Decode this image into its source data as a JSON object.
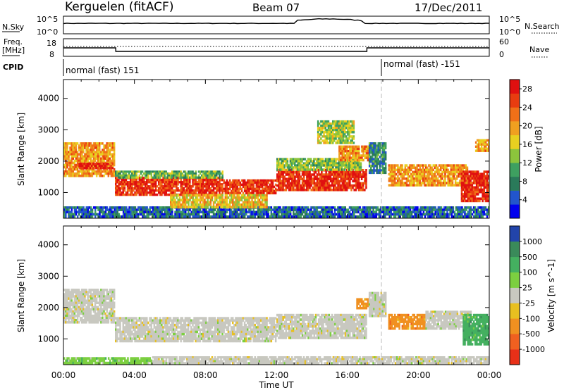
{
  "header": {
    "station": "Kerguelen (fitACF)",
    "beam": "Beam 07",
    "date": "17/Dec/2011"
  },
  "strip_nsky": {
    "left_label": "N.Sky",
    "left_ticks": [
      "10^5",
      "10^0"
    ],
    "right_label": "N.Search",
    "right_ticks": [
      "10^5",
      "10^0"
    ]
  },
  "strip_freq": {
    "left_label_1": "Freq.",
    "left_label_2": "[MHz]",
    "left_ticks": [
      "18",
      "8"
    ],
    "right_label": "Nave",
    "right_ticks": [
      "60",
      "0"
    ]
  },
  "strip_cpid": {
    "label": "CPID",
    "modes": [
      {
        "text": "normal (fast) 151",
        "start_hour": 0
      },
      {
        "text": "normal (fast) -151",
        "start_hour": 18
      }
    ]
  },
  "time_axis": {
    "xlabel": "Time UT",
    "ticks": [
      "00:00",
      "04:00",
      "08:00",
      "12:00",
      "16:00",
      "20:00",
      "00:00"
    ]
  },
  "chart_data": [
    {
      "type": "heatmap",
      "panel": "power",
      "ylabel": "Slant Range [km]",
      "yticks": [
        "1000",
        "2000",
        "3000",
        "4000"
      ],
      "ylim": [
        180,
        4600
      ],
      "xlim": [
        0,
        24
      ],
      "colorbar_label": "Power [dB]",
      "colorbar_ticks": [
        "4",
        "8",
        "12",
        "16",
        "20",
        "24",
        "28"
      ],
      "colorbar_colors": [
        "#0000ee",
        "#2255cc",
        "#2a7a5a",
        "#3ea060",
        "#8cc43c",
        "#e8d020",
        "#f0a020",
        "#f07018",
        "#e83c10",
        "#e01010"
      ],
      "colorbar_range": [
        0,
        30
      ],
      "bands": [
        {
          "t": [
            0,
            2.9
          ],
          "r": [
            1500,
            2600
          ],
          "level": 20
        },
        {
          "t": [
            0.8,
            2.8
          ],
          "r": [
            1750,
            1950
          ],
          "level": 27
        },
        {
          "t": [
            2.9,
            9
          ],
          "r": [
            900,
            1500
          ],
          "level": 26
        },
        {
          "t": [
            2.9,
            9
          ],
          "r": [
            1450,
            1700
          ],
          "level": 12
        },
        {
          "t": [
            9,
            12
          ],
          "r": [
            950,
            1420
          ],
          "level": 26
        },
        {
          "t": [
            12,
            17.1
          ],
          "r": [
            1050,
            1750
          ],
          "level": 27
        },
        {
          "t": [
            12,
            16.8
          ],
          "r": [
            1700,
            2100
          ],
          "level": 13
        },
        {
          "t": [
            15.5,
            17.2
          ],
          "r": [
            2000,
            2500
          ],
          "level": 21
        },
        {
          "t": [
            14.3,
            16.4
          ],
          "r": [
            2550,
            3300
          ],
          "level": 14
        },
        {
          "t": [
            17.2,
            18.2
          ],
          "r": [
            1600,
            2600
          ],
          "level": 8
        },
        {
          "t": [
            18.3,
            22.8
          ],
          "r": [
            1200,
            1900
          ],
          "level": 20
        },
        {
          "t": [
            22.4,
            24
          ],
          "r": [
            700,
            1700
          ],
          "level": 27
        },
        {
          "t": [
            23.2,
            24
          ],
          "r": [
            2300,
            2700
          ],
          "level": 20
        },
        {
          "t": [
            0,
            24
          ],
          "r": [
            200,
            560
          ],
          "level": 6
        },
        {
          "t": [
            6,
            11.5
          ],
          "r": [
            500,
            950
          ],
          "level": 18
        }
      ]
    },
    {
      "type": "heatmap",
      "panel": "velocity",
      "ylabel": "Slant Range [km]",
      "yticks": [
        "1000",
        "2000",
        "3000",
        "4000"
      ],
      "ylim": [
        180,
        4600
      ],
      "xlim": [
        0,
        24
      ],
      "colorbar_label": "Velocity [m s^-1]",
      "colorbar_ticks": [
        "1000",
        "500",
        "100",
        "25",
        "-25",
        "-100",
        "-500",
        "-1000"
      ],
      "colorbar_colors": [
        "#2244aa",
        "#3a8a5a",
        "#44b060",
        "#7ccf40",
        "#c8c8c0",
        "#e8c020",
        "#f09020",
        "#f06020",
        "#e83018"
      ],
      "bands": [
        {
          "t": [
            0,
            2.9
          ],
          "r": [
            1500,
            2600
          ],
          "class": "-25..25"
        },
        {
          "t": [
            2.9,
            12
          ],
          "r": [
            900,
            1700
          ],
          "class": "-25..25"
        },
        {
          "t": [
            12,
            17.1
          ],
          "r": [
            1000,
            1800
          ],
          "class": "-25..25"
        },
        {
          "t": [
            16.5,
            17.2
          ],
          "r": [
            1950,
            2300
          ],
          "class": "-500..-100"
        },
        {
          "t": [
            17.2,
            18.2
          ],
          "r": [
            1700,
            2500
          ],
          "class": "-25..25"
        },
        {
          "t": [
            18.3,
            20.4
          ],
          "r": [
            1300,
            1800
          ],
          "class": "-500..-100"
        },
        {
          "t": [
            20.4,
            23
          ],
          "r": [
            1300,
            1900
          ],
          "class": "-25..25"
        },
        {
          "t": [
            22.5,
            24
          ],
          "r": [
            800,
            1800
          ],
          "class": "100..500"
        },
        {
          "t": [
            0,
            5
          ],
          "r": [
            200,
            420
          ],
          "class": "25..100"
        },
        {
          "t": [
            5,
            24
          ],
          "r": [
            200,
            450
          ],
          "class": "-25..25"
        }
      ]
    }
  ]
}
